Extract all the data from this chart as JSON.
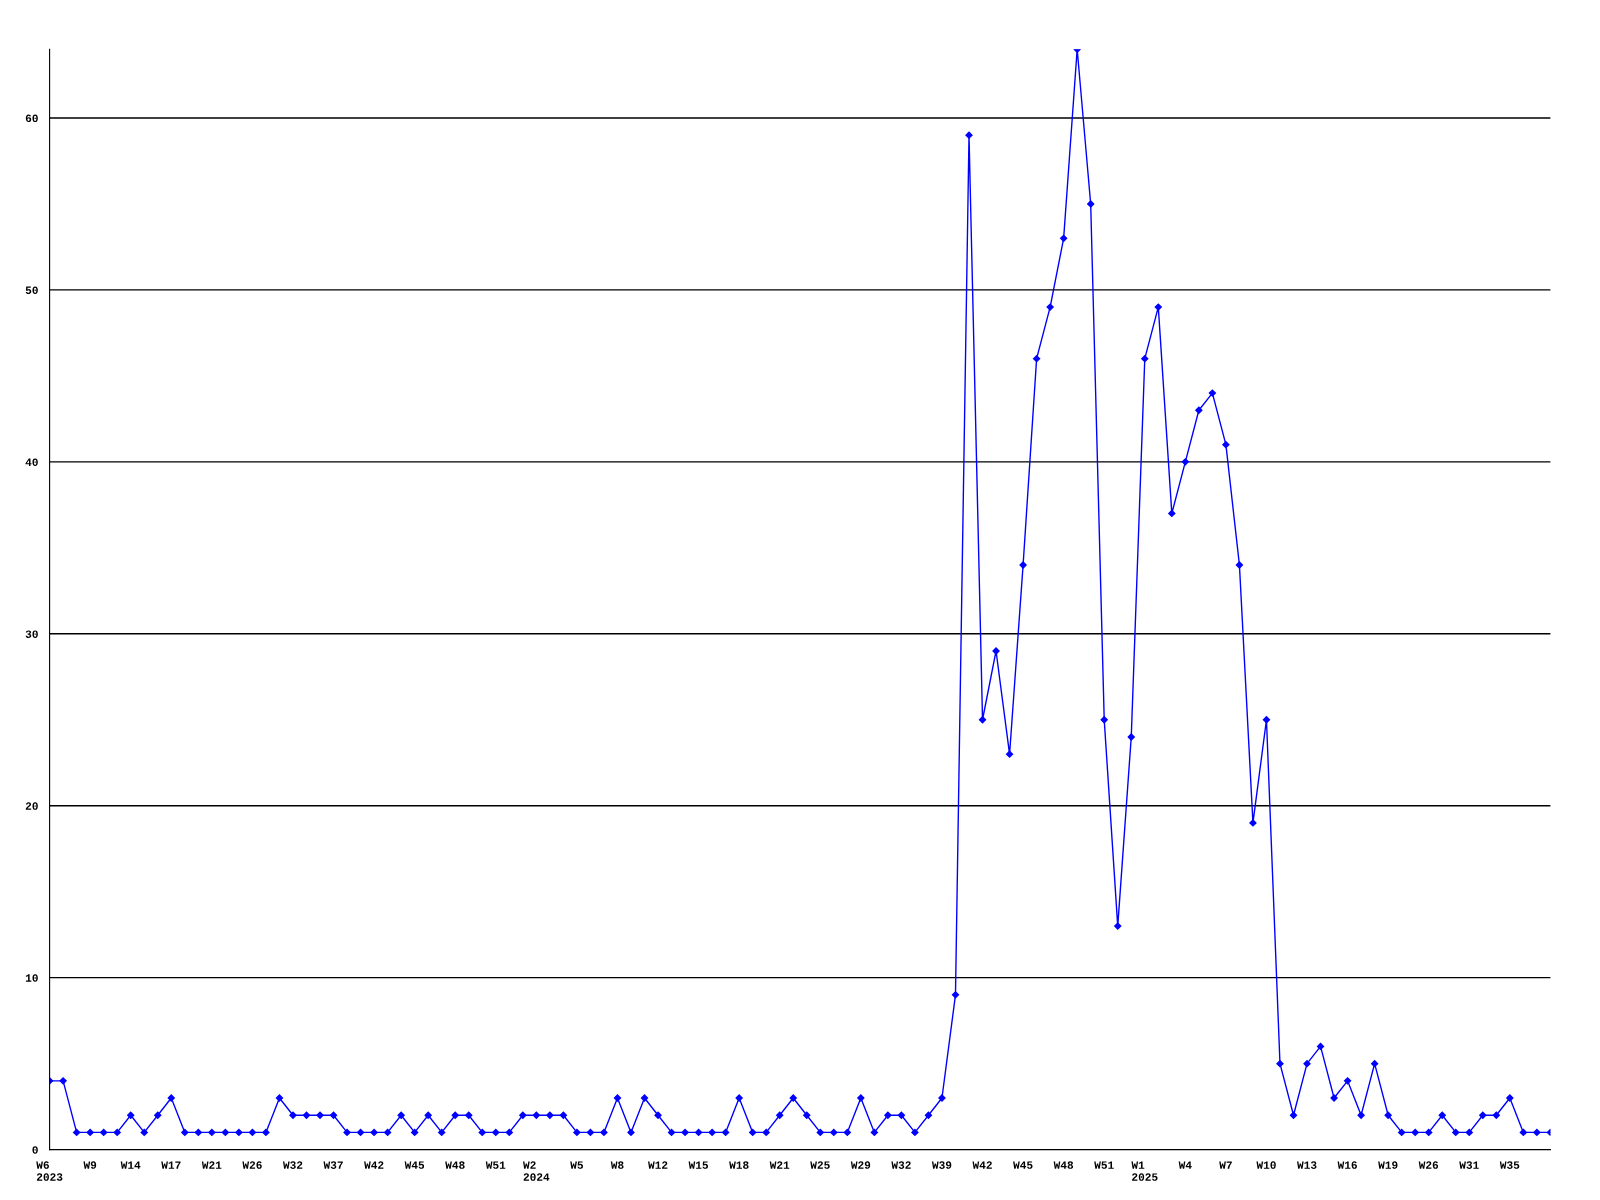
{
  "chart_data": {
    "type": "line",
    "categories": [
      "W6\n2023",
      null,
      null,
      "W9",
      null,
      null,
      "W14",
      null,
      null,
      "W17",
      null,
      null,
      "W21",
      null,
      null,
      "W26",
      null,
      null,
      "W32",
      null,
      null,
      "W37",
      null,
      null,
      "W42",
      null,
      null,
      "W45",
      null,
      null,
      "W48",
      null,
      null,
      "W51",
      null,
      null,
      "W2\n2024",
      null,
      null,
      "W5",
      null,
      null,
      "W8",
      null,
      null,
      "W12",
      null,
      null,
      "W15",
      null,
      null,
      "W18",
      null,
      null,
      "W21",
      null,
      null,
      "W25",
      null,
      null,
      "W29",
      null,
      null,
      "W32",
      null,
      null,
      "W39",
      null,
      null,
      "W42",
      null,
      null,
      "W45",
      null,
      null,
      "W48",
      null,
      null,
      "W51",
      null,
      null,
      "W1\n2025",
      null,
      null,
      "W4",
      null,
      null,
      "W7",
      null,
      null,
      "W10",
      null,
      null,
      "W13",
      null,
      null,
      "W16",
      null,
      null,
      "W19",
      null,
      null,
      "W26",
      null,
      null,
      "W31",
      null,
      null,
      "W35",
      null,
      null,
      null
    ],
    "series": [
      {
        "color": "#0000ff",
        "values": [
          4,
          4,
          1,
          1,
          1,
          1,
          2,
          1,
          2,
          3,
          1,
          1,
          1,
          1,
          1,
          1,
          1,
          3,
          2,
          2,
          2,
          2,
          1,
          1,
          1,
          1,
          2,
          1,
          2,
          1,
          2,
          2,
          1,
          1,
          1,
          2,
          2,
          2,
          2,
          1,
          1,
          1,
          3,
          1,
          3,
          2,
          1,
          1,
          1,
          1,
          1,
          3,
          1,
          1,
          2,
          3,
          2,
          1,
          1,
          1,
          3,
          1,
          2,
          2,
          1,
          2,
          3,
          9,
          59,
          25,
          29,
          23,
          34,
          46,
          49,
          53,
          64,
          55,
          25,
          13,
          24,
          46,
          49,
          37,
          40,
          43,
          44,
          41,
          34,
          19,
          25,
          5,
          2,
          5,
          6,
          3,
          4,
          2,
          5,
          2,
          1,
          1,
          1,
          2,
          1,
          1,
          2,
          2,
          3,
          1,
          1,
          1
        ]
      }
    ],
    "ylim": [
      0,
      64
    ],
    "yticks": [
      0,
      10,
      20,
      30,
      40,
      50,
      60
    ],
    "grid": "y",
    "marker": "diamond",
    "line_style": "solid"
  }
}
